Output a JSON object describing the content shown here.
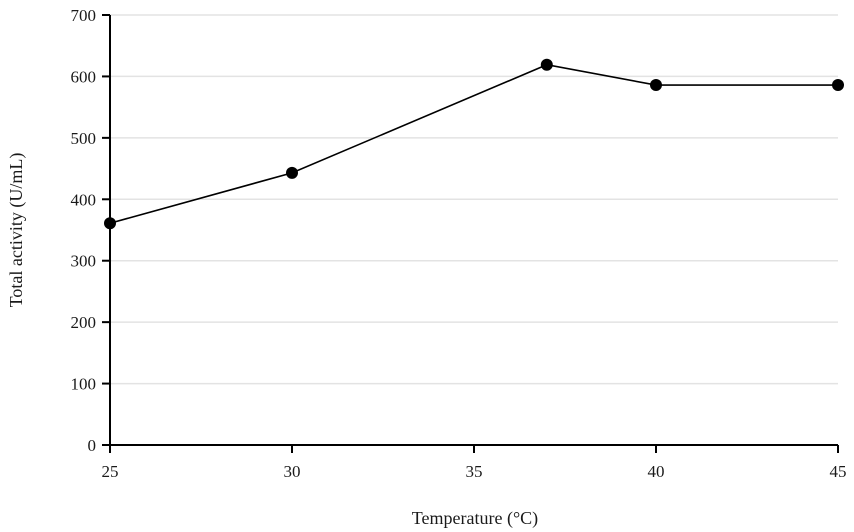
{
  "chart_data": {
    "type": "line",
    "title": "",
    "xlabel": "Temperature (°C)",
    "ylabel": "Total activity (U/mL)",
    "xlim": [
      25,
      45
    ],
    "ylim": [
      0,
      700
    ],
    "x_ticks": [
      25,
      30,
      35,
      40,
      45
    ],
    "y_ticks": [
      0,
      100,
      200,
      300,
      400,
      500,
      600,
      700
    ],
    "grid": {
      "horizontal": true,
      "vertical": false
    },
    "legend": null,
    "series": [
      {
        "name": "Total activity",
        "x": [
          25,
          30,
          37,
          40,
          45
        ],
        "values": [
          361,
          443,
          619,
          586,
          586
        ],
        "marker": "filled-circle",
        "color": "#000000"
      }
    ]
  },
  "colors": {
    "line": "#000000",
    "grid": "#e3e3e3",
    "axis": "#000000"
  }
}
